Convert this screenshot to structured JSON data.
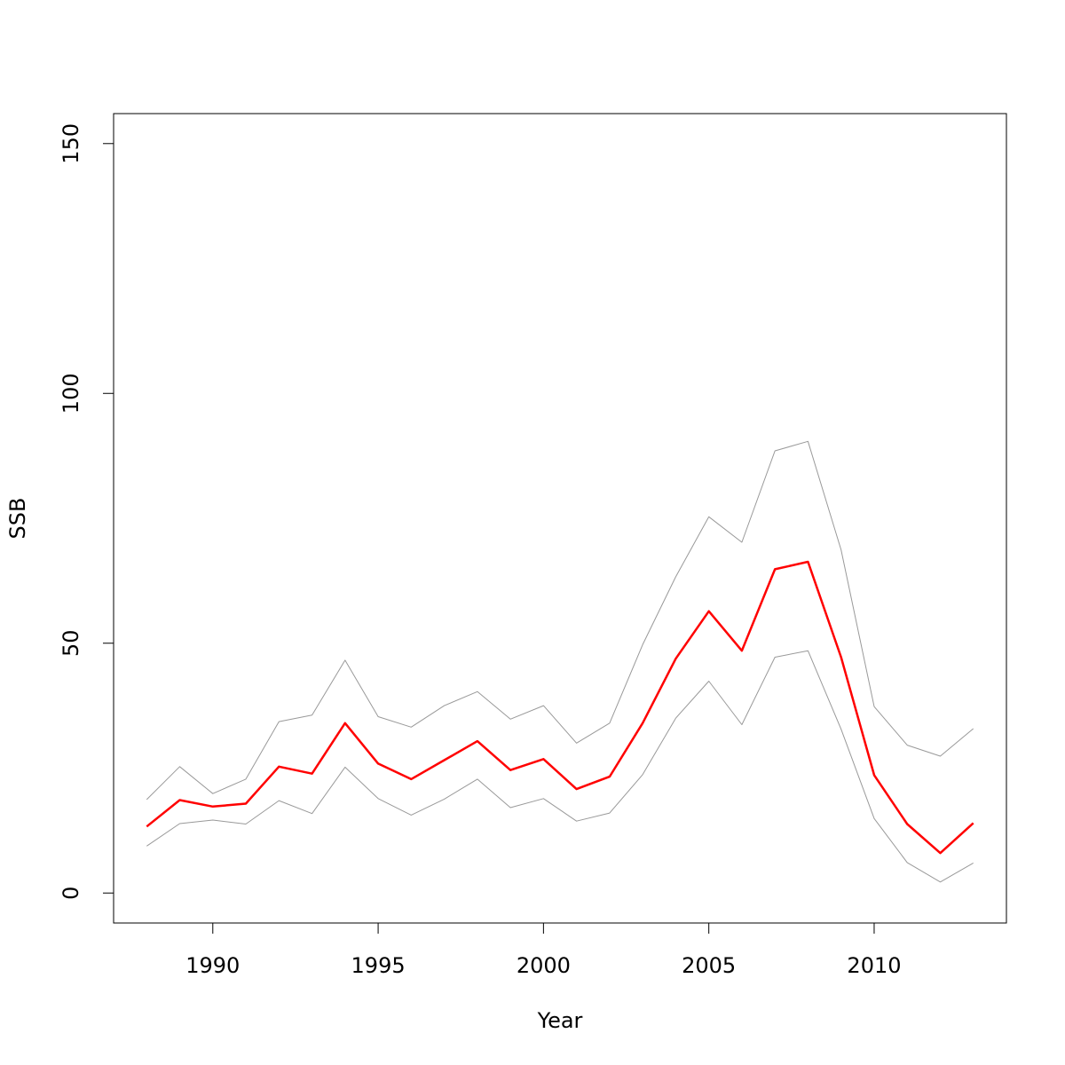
{
  "chart_data": {
    "type": "line",
    "title": "",
    "xlabel": "Year",
    "ylabel": "SSB",
    "xlim": [
      1987,
      2014
    ],
    "ylim": [
      -6,
      156
    ],
    "x_ticks": [
      {
        "value": 1990,
        "label": "1990"
      },
      {
        "value": 1995,
        "label": "1995"
      },
      {
        "value": 2000,
        "label": "2000"
      },
      {
        "value": 2005,
        "label": "2005"
      },
      {
        "value": 2010,
        "label": "2010"
      }
    ],
    "y_ticks": [
      {
        "value": 0,
        "label": "0"
      },
      {
        "value": 50,
        "label": "50"
      },
      {
        "value": 100,
        "label": "100"
      },
      {
        "value": 150,
        "label": "150"
      }
    ],
    "grid": false,
    "legend": "none",
    "x": [
      1988,
      1989,
      1990,
      1991,
      1992,
      1993,
      1994,
      1995,
      1996,
      1997,
      1998,
      1999,
      2000,
      2001,
      2002,
      2003,
      2004,
      2005,
      2006,
      2007,
      2008,
      2009,
      2010,
      2011,
      2012,
      2013
    ],
    "series": [
      {
        "color": "#ff0000",
        "width": 2.5,
        "values": [
          13.3,
          18.6,
          17.3,
          17.9,
          25.3,
          23.9,
          34.0,
          25.9,
          22.8,
          26.6,
          30.4,
          24.6,
          26.8,
          20.8,
          23.3,
          34.0,
          46.9,
          56.4,
          48.5,
          64.8,
          66.3,
          47.2,
          23.6,
          13.8,
          8.0,
          14.0
        ]
      },
      {
        "color": "#999999",
        "width": 1,
        "values": [
          18.7,
          25.3,
          19.9,
          22.8,
          34.3,
          35.6,
          46.6,
          35.3,
          33.2,
          37.5,
          40.3,
          34.8,
          37.5,
          30.0,
          34.0,
          49.7,
          63.3,
          75.3,
          70.2,
          88.5,
          90.4,
          68.7,
          37.3,
          29.6,
          27.4,
          32.9
        ]
      },
      {
        "color": "#999999",
        "width": 1,
        "values": [
          9.4,
          13.9,
          14.6,
          13.8,
          18.5,
          15.9,
          25.2,
          18.9,
          15.6,
          18.8,
          22.8,
          17.1,
          18.9,
          14.4,
          16.0,
          23.7,
          35.0,
          42.4,
          33.7,
          47.2,
          48.5,
          32.8,
          14.9,
          6.1,
          2.2,
          6.0
        ]
      }
    ]
  }
}
